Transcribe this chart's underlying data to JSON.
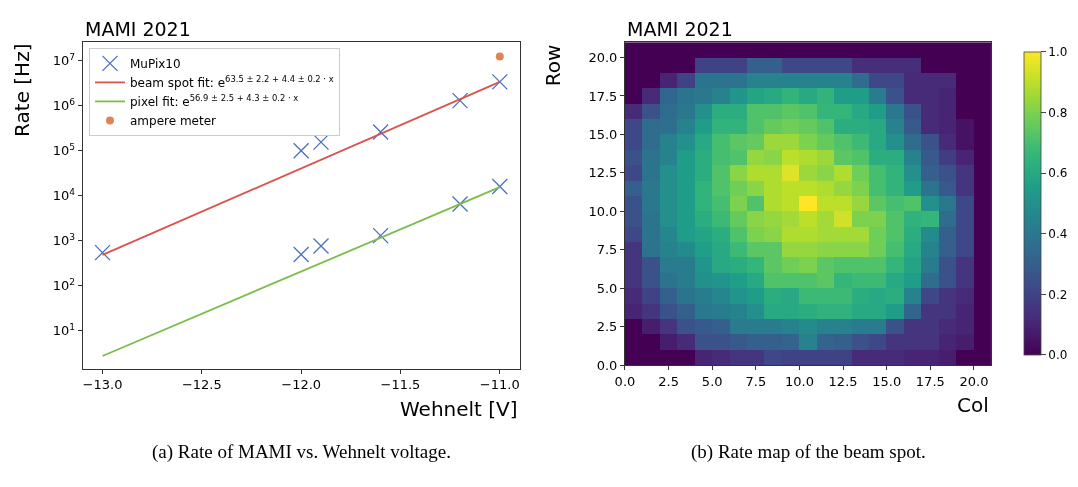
{
  "chart_data": [
    {
      "type": "scatter",
      "title": "MAMI 2021",
      "xlabel": "Wehnelt [V]",
      "ylabel": "Rate [Hz]",
      "log": "y",
      "legend": "top left",
      "xlim": [
        -13.1,
        -10.9
      ],
      "xticks": [
        {
          "value": -13,
          "label": "−13.0"
        },
        {
          "value": -12.5,
          "label": "−12.5"
        },
        {
          "value": -12,
          "label": "−12.0"
        },
        {
          "value": -11.5,
          "label": "−11.5"
        },
        {
          "value": -11,
          "label": "−11.0"
        }
      ],
      "ylim": [
        1.4,
        26000000
      ],
      "yticks": [
        {
          "value": 10,
          "label": "10$^{1}$"
        },
        {
          "value": 100,
          "label": "10$^{2}$"
        },
        {
          "value": 1000,
          "label": "10$^{3}$"
        },
        {
          "value": 10000,
          "label": "10$^{4}$"
        },
        {
          "value": 100000,
          "label": "10$^{5}$"
        },
        {
          "value": 1000000,
          "label": "10$^{6}$"
        },
        {
          "value": 10000000,
          "label": "10$^{7}$"
        }
      ],
      "series": [
        {
          "name": "MuPix10",
          "type": "scatter",
          "marker": "cross",
          "color": "#4a70c0",
          "x": [
            -13,
            -12,
            -11.9,
            -11.6,
            -11.2,
            -11,
            -12,
            -11.9,
            -11.6,
            -11.2,
            -11
          ],
          "values": [
            540,
            100000,
            155000,
            260000,
            1300000,
            3400000,
            490,
            760,
            1290,
            6500,
            16000
          ]
        },
        {
          "name": "beam spot fit: e$^{63.5 ± 2.2 + 4.4 ± 0.2 · x}$",
          "type": "line",
          "marker": "none",
          "line_style": "solid",
          "color": "#d9544d",
          "x": [
            -13,
            -11
          ],
          "values": [
            480,
            3400000
          ]
        },
        {
          "name": "pixel fit: e$^{56.9 ± 2.5 + 4.3 ± 0.2 · x}$",
          "type": "line",
          "marker": "none",
          "line_style": "solid",
          "color": "#7cbd4a",
          "x": [
            -13,
            -11
          ],
          "values": [
            2.7,
            15500
          ]
        },
        {
          "name": "ampere meter",
          "type": "scatter",
          "marker": "circle",
          "color": "#dd8452",
          "x": [
            -11
          ],
          "values": [
            12500000
          ]
        }
      ],
      "annotations": [
        "(a) Rate of MAMI vs. Wehnelt voltage."
      ]
    },
    {
      "type": "heatmap",
      "title": "MAMI 2021",
      "xlabel": "Col",
      "ylabel": "Row",
      "x": [
        0.5,
        1.5,
        2.5,
        3.5,
        4.5,
        5.5,
        6.5,
        7.5,
        8.5,
        9.5,
        10.5,
        11.5,
        12.5,
        13.5,
        14.5,
        15.5,
        16.5,
        17.5,
        18.5,
        19.5,
        20.5
      ],
      "y": [
        20.5,
        19.5,
        18.5,
        17.5,
        16.5,
        15.5,
        14.5,
        13.5,
        12.5,
        11.5,
        10.5,
        9.5,
        8.5,
        7.5,
        6.5,
        5.5,
        4.5,
        3.5,
        2.5,
        1.5,
        0.5
      ],
      "xlim": [
        0,
        21
      ],
      "ylim": [
        0,
        21
      ],
      "xticks": [
        {
          "value": 0,
          "label": "0.0"
        },
        {
          "value": 2.5,
          "label": "2.5"
        },
        {
          "value": 5,
          "label": "5.0"
        },
        {
          "value": 7.5,
          "label": "7.5"
        },
        {
          "value": 10,
          "label": "10.0"
        },
        {
          "value": 12.5,
          "label": "12.5"
        },
        {
          "value": 15,
          "label": "15.0"
        },
        {
          "value": 17.5,
          "label": "17.5"
        },
        {
          "value": 20,
          "label": "20.0"
        }
      ],
      "yticks": [
        {
          "value": 0,
          "label": "0.0"
        },
        {
          "value": 2.5,
          "label": "2.5"
        },
        {
          "value": 5,
          "label": "5.0"
        },
        {
          "value": 7.5,
          "label": "7.5"
        },
        {
          "value": 10,
          "label": "10.0"
        },
        {
          "value": 12.5,
          "label": "12.5"
        },
        {
          "value": 15,
          "label": "15.0"
        },
        {
          "value": 17.5,
          "label": "17.5"
        },
        {
          "value": 20,
          "label": "20.0"
        }
      ],
      "clim": [
        0,
        1
      ],
      "cticks": [
        {
          "value": 0,
          "label": "0.0"
        },
        {
          "value": 0.2,
          "label": "0.2"
        },
        {
          "value": 0.4,
          "label": "0.4"
        },
        {
          "value": 0.6,
          "label": "0.6"
        },
        {
          "value": 0.8,
          "label": "0.8"
        },
        {
          "value": 1,
          "label": "1.0"
        }
      ],
      "cells": [
        [
          0,
          0,
          0,
          0,
          0,
          0,
          0,
          0,
          0,
          0,
          0,
          0,
          0,
          0,
          0,
          0,
          0,
          0,
          0,
          0,
          0
        ],
        [
          0,
          0,
          0,
          0,
          0.2,
          0.2,
          0.2,
          0.3,
          0.3,
          0.22,
          0.22,
          0.22,
          0.22,
          0.13,
          0.13,
          0.13,
          0.13,
          0,
          0,
          0,
          0
        ],
        [
          0,
          0,
          0.1,
          0.2,
          0.38,
          0.38,
          0.38,
          0.45,
          0.45,
          0.45,
          0.45,
          0.45,
          0.45,
          0.35,
          0.22,
          0.22,
          0.12,
          0.12,
          0.12,
          0,
          0
        ],
        [
          0,
          0.12,
          0.33,
          0.38,
          0.4,
          0.45,
          0.52,
          0.58,
          0.6,
          0.65,
          0.6,
          0.65,
          0.55,
          0.55,
          0.42,
          0.25,
          0.12,
          0.12,
          0.1,
          0,
          0
        ],
        [
          0.12,
          0.25,
          0.35,
          0.4,
          0.5,
          0.62,
          0.62,
          0.72,
          0.72,
          0.74,
          0.72,
          0.66,
          0.66,
          0.6,
          0.55,
          0.4,
          0.25,
          0.12,
          0.1,
          0,
          0
        ],
        [
          0.22,
          0.35,
          0.36,
          0.45,
          0.55,
          0.65,
          0.65,
          0.72,
          0.76,
          0.78,
          0.76,
          0.72,
          0.62,
          0.62,
          0.6,
          0.45,
          0.28,
          0.12,
          0.1,
          0.05,
          0
        ],
        [
          0.22,
          0.35,
          0.45,
          0.5,
          0.6,
          0.7,
          0.74,
          0.76,
          0.85,
          0.85,
          0.8,
          0.76,
          0.72,
          0.68,
          0.6,
          0.5,
          0.35,
          0.25,
          0.12,
          0.05,
          0
        ],
        [
          0.25,
          0.38,
          0.45,
          0.55,
          0.62,
          0.7,
          0.72,
          0.84,
          0.82,
          0.9,
          0.88,
          0.85,
          0.74,
          0.72,
          0.62,
          0.62,
          0.45,
          0.28,
          0.18,
          0.1,
          0
        ],
        [
          0.22,
          0.38,
          0.5,
          0.55,
          0.62,
          0.72,
          0.82,
          0.88,
          0.88,
          0.95,
          0.85,
          0.82,
          0.88,
          0.78,
          0.7,
          0.65,
          0.5,
          0.3,
          0.25,
          0.15,
          0
        ],
        [
          0.3,
          0.4,
          0.5,
          0.55,
          0.65,
          0.72,
          0.78,
          0.82,
          0.88,
          0.9,
          0.9,
          0.88,
          0.84,
          0.8,
          0.7,
          0.65,
          0.55,
          0.38,
          0.28,
          0.15,
          0
        ],
        [
          0.25,
          0.4,
          0.5,
          0.55,
          0.65,
          0.7,
          0.8,
          0.72,
          0.88,
          0.9,
          1.0,
          0.9,
          0.9,
          0.84,
          0.74,
          0.7,
          0.72,
          0.5,
          0.4,
          0.22,
          0
        ],
        [
          0.25,
          0.38,
          0.5,
          0.55,
          0.62,
          0.68,
          0.76,
          0.82,
          0.84,
          0.86,
          0.9,
          0.86,
          0.93,
          0.8,
          0.8,
          0.72,
          0.64,
          0.66,
          0.35,
          0.22,
          0
        ],
        [
          0.22,
          0.38,
          0.46,
          0.55,
          0.58,
          0.62,
          0.72,
          0.8,
          0.82,
          0.88,
          0.88,
          0.86,
          0.86,
          0.86,
          0.78,
          0.72,
          0.62,
          0.48,
          0.3,
          0.22,
          0
        ],
        [
          0.15,
          0.38,
          0.45,
          0.48,
          0.56,
          0.6,
          0.68,
          0.74,
          0.74,
          0.84,
          0.84,
          0.82,
          0.82,
          0.82,
          0.78,
          0.7,
          0.6,
          0.45,
          0.3,
          0.22,
          0
        ],
        [
          0.15,
          0.25,
          0.42,
          0.42,
          0.52,
          0.6,
          0.62,
          0.66,
          0.74,
          0.78,
          0.8,
          0.74,
          0.72,
          0.72,
          0.72,
          0.66,
          0.58,
          0.42,
          0.25,
          0.15,
          0
        ],
        [
          0.15,
          0.25,
          0.38,
          0.42,
          0.5,
          0.52,
          0.56,
          0.6,
          0.72,
          0.72,
          0.72,
          0.74,
          0.66,
          0.68,
          0.68,
          0.6,
          0.55,
          0.35,
          0.25,
          0.15,
          0
        ],
        [
          0.12,
          0.2,
          0.3,
          0.38,
          0.42,
          0.46,
          0.52,
          0.55,
          0.62,
          0.6,
          0.68,
          0.68,
          0.68,
          0.62,
          0.6,
          0.62,
          0.45,
          0.22,
          0.15,
          0.12,
          0
        ],
        [
          0.1,
          0.15,
          0.25,
          0.3,
          0.4,
          0.42,
          0.45,
          0.5,
          0.6,
          0.6,
          0.62,
          0.64,
          0.64,
          0.6,
          0.6,
          0.55,
          0.32,
          0.15,
          0.15,
          0.1,
          0
        ],
        [
          0,
          0.08,
          0.15,
          0.25,
          0.28,
          0.3,
          0.42,
          0.42,
          0.42,
          0.45,
          0.48,
          0.45,
          0.45,
          0.42,
          0.42,
          0.25,
          0.15,
          0.15,
          0.12,
          0.1,
          0
        ],
        [
          0,
          0,
          0.08,
          0.12,
          0.25,
          0.25,
          0.28,
          0.3,
          0.3,
          0.32,
          0.45,
          0.32,
          0.3,
          0.25,
          0.22,
          0.15,
          0.15,
          0.15,
          0.1,
          0.08,
          0
        ],
        [
          0,
          0,
          0,
          0,
          0.1,
          0.12,
          0.15,
          0.15,
          0.22,
          0.2,
          0.2,
          0.2,
          0.2,
          0.12,
          0.12,
          0.12,
          0.1,
          0.1,
          0.08,
          0,
          0
        ]
      ],
      "annotations": [
        "(b) Rate map of the beam spot."
      ]
    }
  ]
}
